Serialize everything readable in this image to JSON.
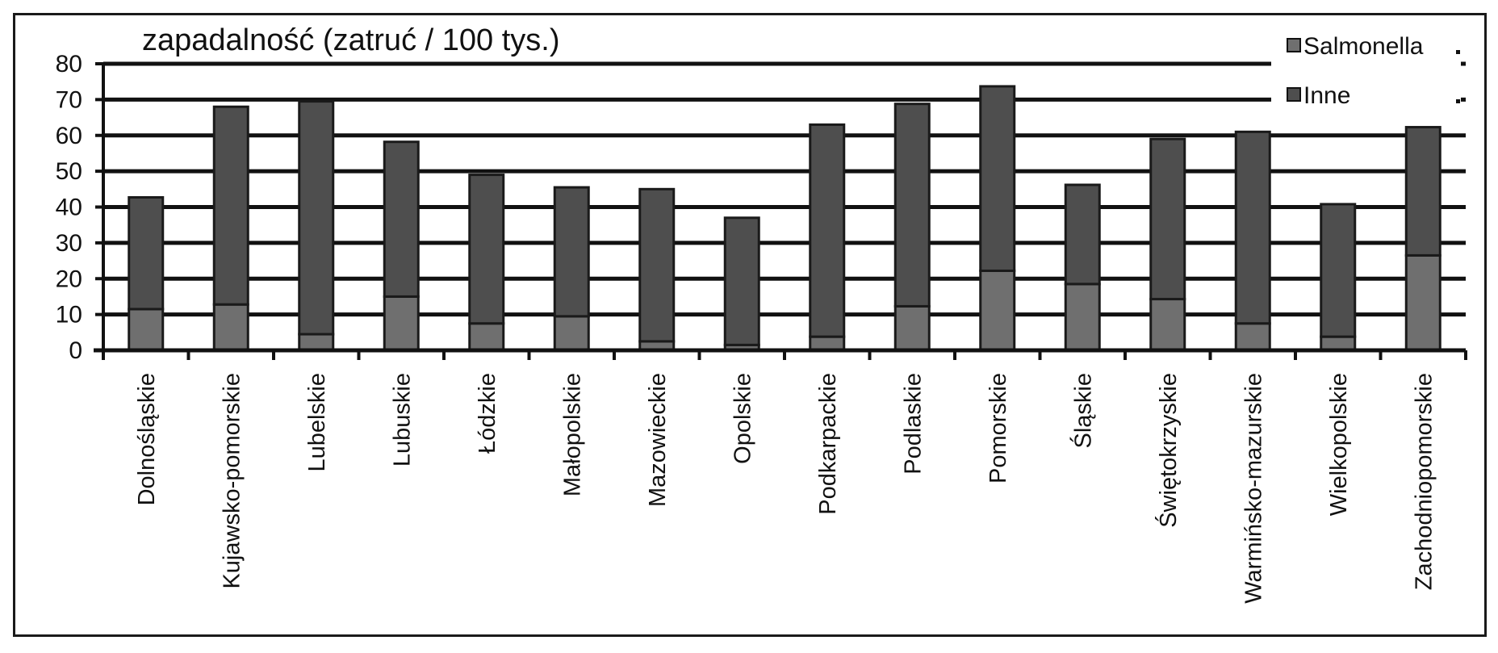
{
  "chart_data": {
    "type": "bar",
    "stacked": true,
    "title": "zapadalność (zatruć / 100 tys.)",
    "xlabel": "",
    "ylabel": "",
    "ylim": [
      0,
      80
    ],
    "yticks": [
      0,
      10,
      20,
      30,
      40,
      50,
      60,
      70,
      80
    ],
    "grid": true,
    "legend_position": "top-right",
    "categories": [
      "Dolnośląskie",
      "Kujawsko-pomorskie",
      "Lubelskie",
      "Lubuskie",
      "Łódzkie",
      "Małopolskie",
      "Mazowieckie",
      "Opolskie",
      "Podkarpackie",
      "Podlaskie",
      "Pomorskie",
      "Śląskie",
      "Świętokrzyskie",
      "Warmińsko-mazurskie",
      "Wielkopolskie",
      "Zachodniopomorskie"
    ],
    "series": [
      {
        "name": "Salmonella",
        "color": "#6f6f6f",
        "values": [
          11.5,
          12.8,
          4.5,
          15,
          7.5,
          9.5,
          2.5,
          1.5,
          3.8,
          12.3,
          22.2,
          18.5,
          14.3,
          7.5,
          3.8,
          26.5
        ]
      },
      {
        "name": "Inne",
        "color": "#4e4e4e",
        "values": [
          31.2,
          55.2,
          65,
          43.2,
          41.5,
          36,
          42.5,
          35.5,
          59.2,
          56.5,
          51.5,
          27.7,
          44.7,
          53.5,
          37,
          35.8
        ]
      }
    ],
    "colors": {
      "salmonella": "#6f6f6f",
      "inne": "#4e4e4e",
      "outline": "#1a1a1a",
      "gridline": "#111111"
    }
  }
}
